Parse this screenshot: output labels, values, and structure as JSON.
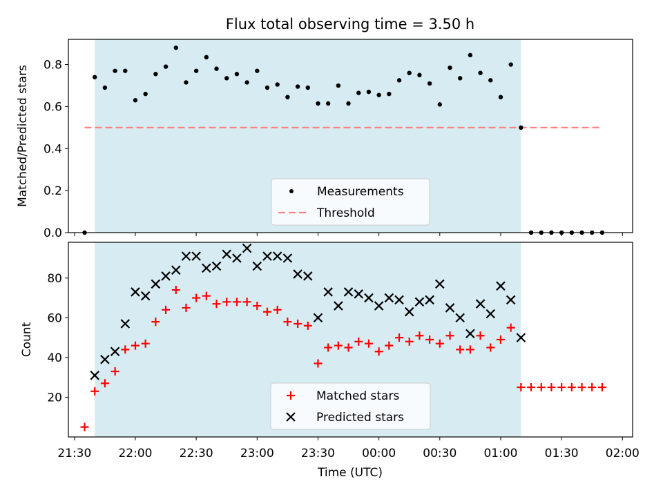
{
  "colors": {
    "shade": "#add8e6",
    "measurement": "#000000",
    "threshold": "#ff7f7f",
    "matched": "#ff0000",
    "predicted": "#000000"
  },
  "chart_data": [
    {
      "type": "scatter",
      "title": "Flux total observing time = 3.50 h",
      "xlabel": "",
      "ylabel": "Matched/Predicted stars",
      "xlim": [
        "21:27",
        "02:05"
      ],
      "ylim": [
        0,
        0.92
      ],
      "yticks": [
        "0.0",
        "0.2",
        "0.4",
        "0.6",
        "0.8"
      ],
      "shaded_span": [
        "21:40",
        "01:10"
      ],
      "legend": {
        "position": "lower center",
        "entries": [
          "Measurements",
          "Threshold"
        ]
      },
      "threshold": {
        "name": "Threshold",
        "value": 0.5,
        "x": [
          "21:35",
          "01:50"
        ]
      },
      "series": [
        {
          "name": "Measurements",
          "x": [
            "21:35",
            "21:40",
            "21:45",
            "21:50",
            "21:55",
            "22:00",
            "22:05",
            "22:10",
            "22:15",
            "22:20",
            "22:25",
            "22:30",
            "22:35",
            "22:40",
            "22:45",
            "22:50",
            "22:55",
            "23:00",
            "23:05",
            "23:10",
            "23:15",
            "23:20",
            "23:25",
            "23:30",
            "23:35",
            "23:40",
            "23:45",
            "23:50",
            "23:55",
            "00:00",
            "00:05",
            "00:10",
            "00:15",
            "00:20",
            "00:25",
            "00:30",
            "00:35",
            "00:40",
            "00:45",
            "00:50",
            "00:55",
            "01:00",
            "01:05",
            "01:10",
            "01:15",
            "01:20",
            "01:25",
            "01:30",
            "01:35",
            "01:40",
            "01:45",
            "01:50"
          ],
          "values": [
            0.0,
            0.74,
            0.69,
            0.77,
            0.77,
            0.63,
            0.66,
            0.755,
            0.79,
            0.88,
            0.715,
            0.77,
            0.835,
            0.78,
            0.735,
            0.755,
            0.715,
            0.77,
            0.69,
            0.705,
            0.645,
            0.695,
            0.69,
            0.615,
            0.615,
            0.7,
            0.615,
            0.665,
            0.67,
            0.655,
            0.66,
            0.725,
            0.76,
            0.75,
            0.71,
            0.61,
            0.785,
            0.735,
            0.845,
            0.76,
            0.725,
            0.645,
            0.8,
            0.5,
            0.0,
            0.0,
            0.0,
            0.0,
            0.0,
            0.0,
            0.0,
            0.0
          ]
        }
      ]
    },
    {
      "type": "scatter",
      "title": "",
      "xlabel": "Time (UTC)",
      "ylabel": "Count",
      "xlim": [
        "21:27",
        "02:05"
      ],
      "ylim": [
        0,
        98
      ],
      "yticks": [
        "20",
        "40",
        "60",
        "80"
      ],
      "xticks": [
        "21:30",
        "22:00",
        "22:30",
        "23:00",
        "23:30",
        "00:00",
        "00:30",
        "01:00",
        "01:30",
        "02:00"
      ],
      "shaded_span": [
        "21:40",
        "01:10"
      ],
      "legend": {
        "position": "lower center",
        "entries": [
          "Matched stars",
          "Predicted stars"
        ]
      },
      "series": [
        {
          "name": "Matched stars",
          "marker": "plus",
          "x": [
            "21:35",
            "21:40",
            "21:45",
            "21:50",
            "21:55",
            "22:00",
            "22:05",
            "22:10",
            "22:15",
            "22:20",
            "22:25",
            "22:30",
            "22:35",
            "22:40",
            "22:45",
            "22:50",
            "22:55",
            "23:00",
            "23:05",
            "23:10",
            "23:15",
            "23:20",
            "23:25",
            "23:30",
            "23:35",
            "23:40",
            "23:45",
            "23:50",
            "23:55",
            "00:00",
            "00:05",
            "00:10",
            "00:15",
            "00:20",
            "00:25",
            "00:30",
            "00:35",
            "00:40",
            "00:45",
            "00:50",
            "00:55",
            "01:00",
            "01:05",
            "01:10",
            "01:15",
            "01:20",
            "01:25",
            "01:30",
            "01:35",
            "01:40",
            "01:45",
            "01:50"
          ],
          "values": [
            5,
            23,
            27,
            33,
            44,
            46,
            47,
            58,
            64,
            74,
            65,
            70,
            71,
            67,
            68,
            68,
            68,
            66,
            63,
            64,
            58,
            57,
            56,
            37,
            45,
            46,
            45,
            48,
            47,
            43,
            46,
            50,
            48,
            51,
            49,
            47,
            51,
            44,
            44,
            51,
            45,
            49,
            55,
            25,
            25,
            25,
            25,
            25,
            25,
            25,
            25,
            25
          ]
        },
        {
          "name": "Predicted stars",
          "marker": "x",
          "x": [
            "21:40",
            "21:45",
            "21:50",
            "21:55",
            "22:00",
            "22:05",
            "22:10",
            "22:15",
            "22:20",
            "22:25",
            "22:30",
            "22:35",
            "22:40",
            "22:45",
            "22:50",
            "22:55",
            "23:00",
            "23:05",
            "23:10",
            "23:15",
            "23:20",
            "23:25",
            "23:30",
            "23:35",
            "23:40",
            "23:45",
            "23:50",
            "23:55",
            "00:00",
            "00:05",
            "00:10",
            "00:15",
            "00:20",
            "00:25",
            "00:30",
            "00:35",
            "00:40",
            "00:45",
            "00:50",
            "00:55",
            "01:00",
            "01:05",
            "01:10"
          ],
          "values": [
            31,
            39,
            43,
            57,
            73,
            71,
            77,
            81,
            84,
            91,
            91,
            85,
            86,
            92,
            90,
            95,
            86,
            91,
            91,
            90,
            82,
            81,
            60,
            73,
            66,
            73,
            72,
            70,
            66,
            70,
            69,
            63,
            68,
            69,
            77,
            65,
            60,
            52,
            67,
            62,
            76,
            69,
            50
          ]
        }
      ]
    }
  ]
}
